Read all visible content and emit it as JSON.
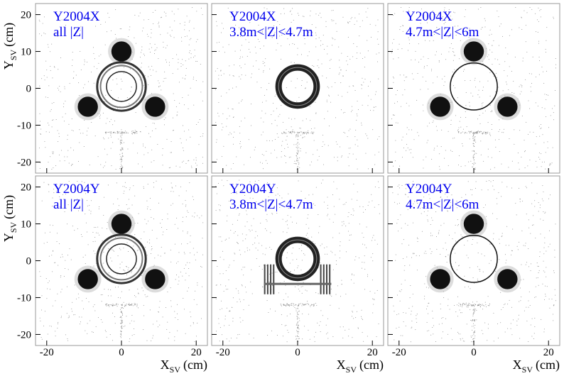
{
  "chart_data": [
    {
      "type": "scatter",
      "annotation": [
        "Y2004X",
        "all |Z|"
      ],
      "xlim": [
        -23,
        23
      ],
      "ylim": [
        -23,
        23
      ],
      "xticks": [
        -20,
        0,
        20
      ],
      "yticks": [
        20,
        10,
        0,
        -10,
        -20
      ],
      "xtick_labels": false,
      "ytick_labels": true,
      "ylabel": {
        "main": "Y",
        "sub": "SV",
        "unit": "(cm)"
      }
    },
    {
      "type": "scatter",
      "annotation": [
        "Y2004X",
        "3.8m<|Z|<4.7m"
      ],
      "xlim": [
        -23,
        23
      ],
      "ylim": [
        -23,
        23
      ],
      "xticks": [
        -20,
        0,
        20
      ],
      "yticks": [
        20,
        10,
        0,
        -10,
        -20
      ],
      "xtick_labels": false,
      "ytick_labels": false
    },
    {
      "type": "scatter",
      "annotation": [
        "Y2004X",
        "4.7m<|Z|<6m"
      ],
      "xlim": [
        -23,
        23
      ],
      "ylim": [
        -23,
        23
      ],
      "xticks": [
        -20,
        0,
        20
      ],
      "yticks": [
        20,
        10,
        0,
        -10,
        -20
      ],
      "xtick_labels": false,
      "ytick_labels": false
    },
    {
      "type": "scatter",
      "annotation": [
        "Y2004Y",
        "all |Z|"
      ],
      "xlim": [
        -23,
        23
      ],
      "ylim": [
        -23,
        23
      ],
      "xticks": [
        -20,
        0,
        20
      ],
      "yticks": [
        20,
        10,
        0,
        -10,
        -20
      ],
      "xtick_labels": true,
      "ytick_labels": true,
      "ylabel": {
        "main": "Y",
        "sub": "SV",
        "unit": "(cm)"
      },
      "xlabel": {
        "main": "X",
        "sub": "SV",
        "unit": "(cm)"
      }
    },
    {
      "type": "scatter",
      "annotation": [
        "Y2004Y",
        "3.8m<|Z|<4.7m"
      ],
      "xlim": [
        -23,
        23
      ],
      "ylim": [
        -23,
        23
      ],
      "xticks": [
        -20,
        0,
        20
      ],
      "yticks": [
        20,
        10,
        0,
        -10,
        -20
      ],
      "xtick_labels": true,
      "ytick_labels": false,
      "xlabel": {
        "main": "X",
        "sub": "SV",
        "unit": "(cm)"
      }
    },
    {
      "type": "scatter",
      "annotation": [
        "Y2004Y",
        "4.7m<|Z|<6m"
      ],
      "xlim": [
        -23,
        23
      ],
      "ylim": [
        -23,
        23
      ],
      "xticks": [
        -20,
        0,
        20
      ],
      "yticks": [
        20,
        10,
        0,
        -10,
        -20
      ],
      "xtick_labels": true,
      "ytick_labels": false,
      "xlabel": {
        "main": "X",
        "sub": "SV",
        "unit": "(cm)"
      }
    }
  ]
}
